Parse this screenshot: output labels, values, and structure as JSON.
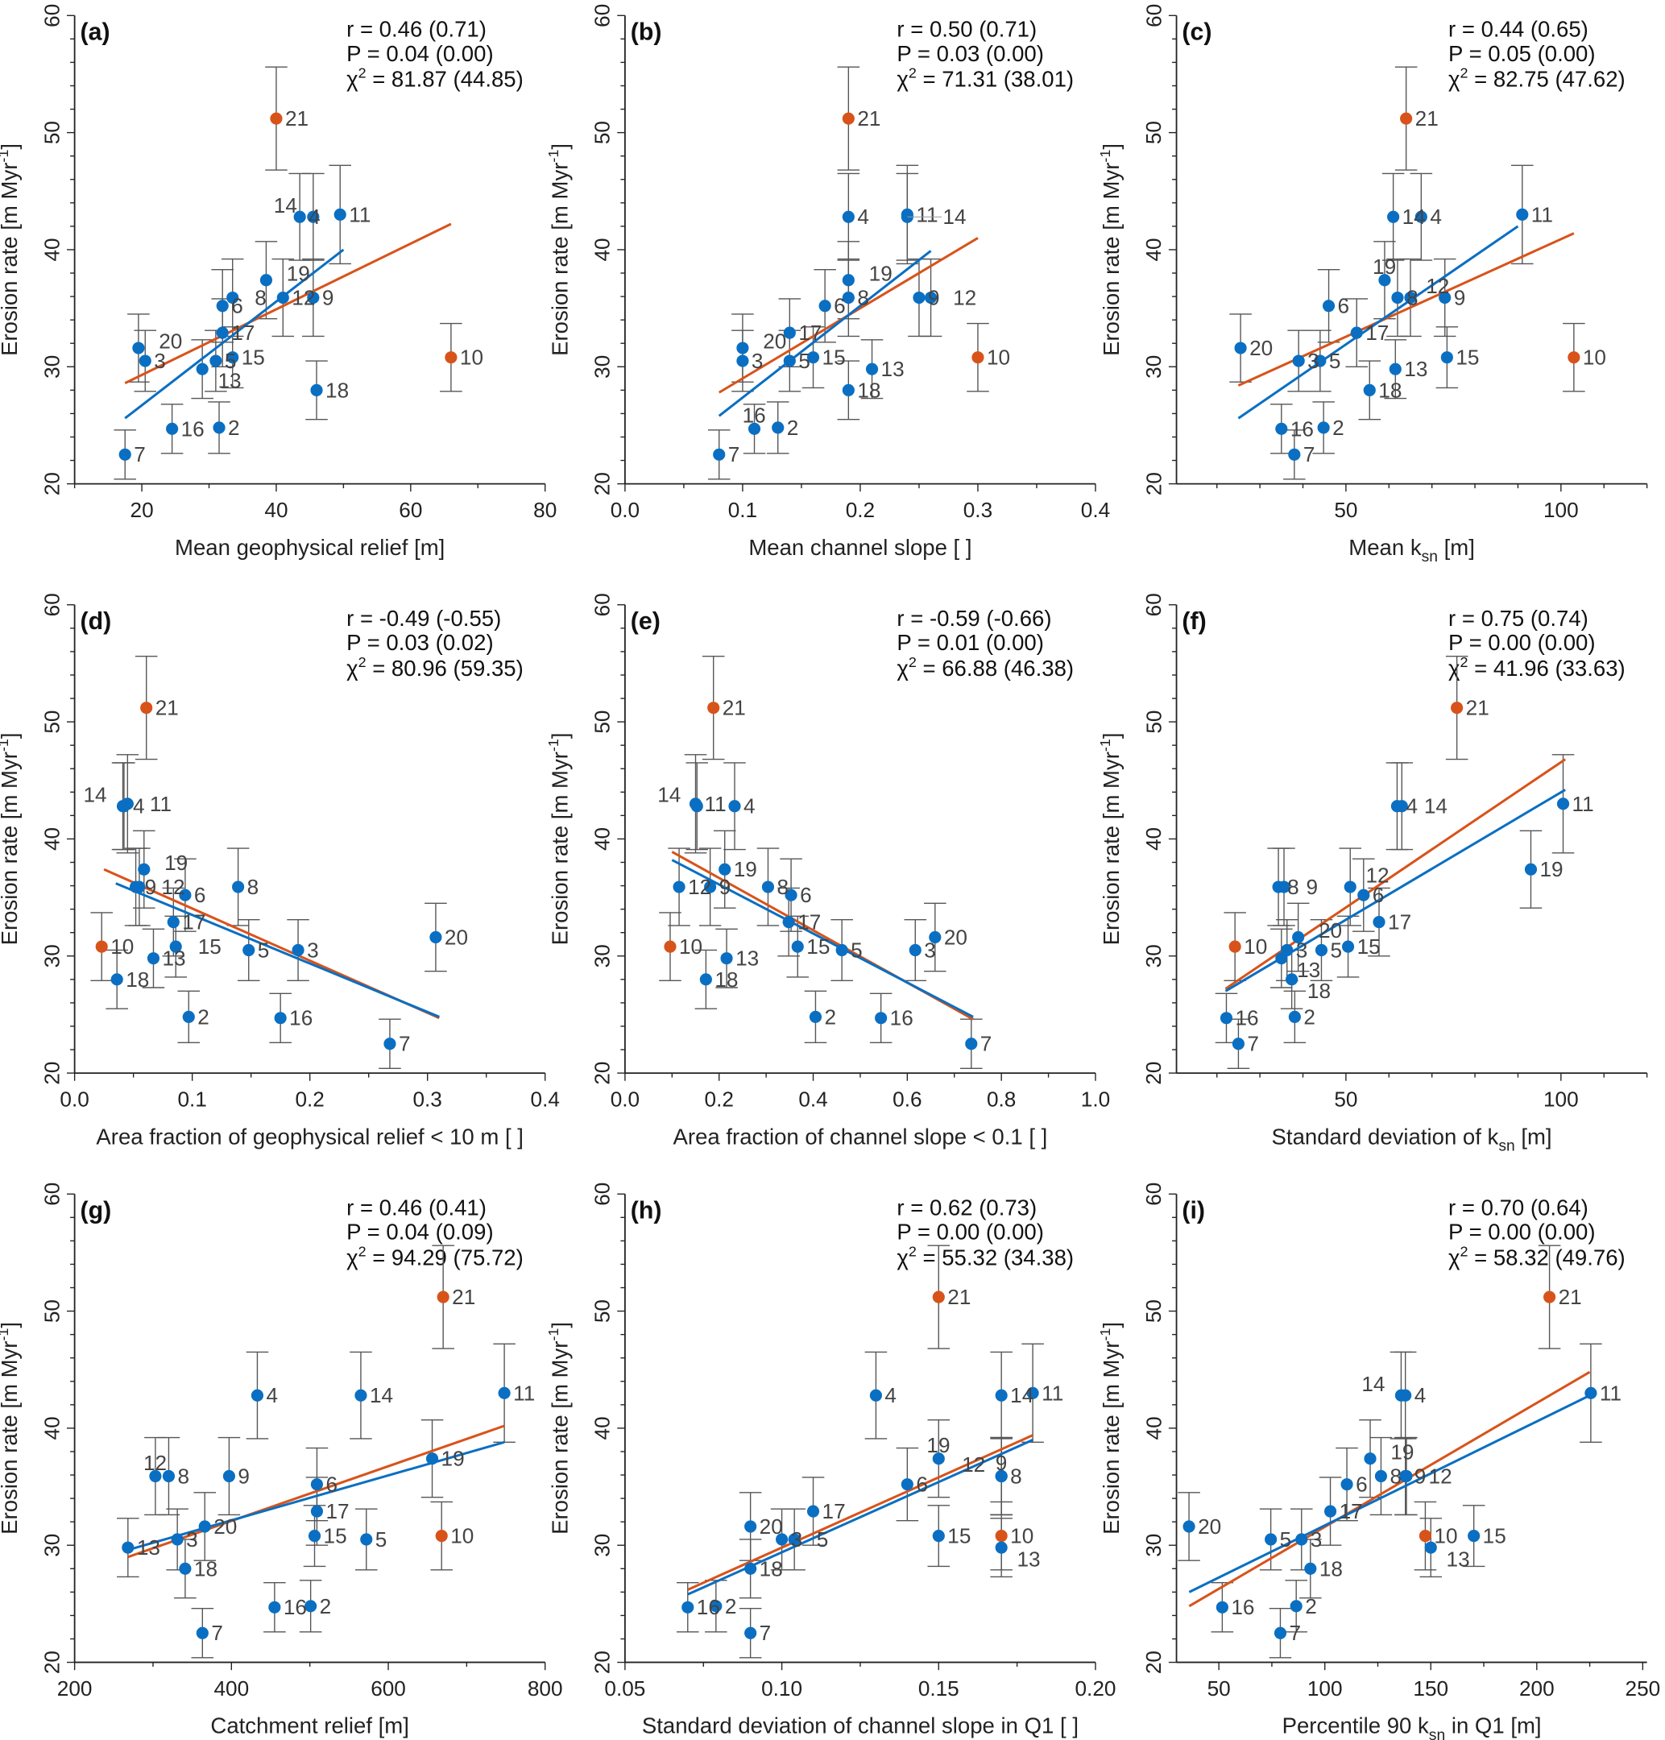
{
  "colors": {
    "blue": "#0a6fc2",
    "orange": "#d8531a",
    "errorbar": "#555555",
    "axis": "#222222"
  },
  "ylabel": {
    "pre": "Erosion rate [m Myr",
    "sup": "-1",
    "post": "]"
  },
  "yticks": [
    20,
    30,
    40,
    50,
    60
  ],
  "ylim": [
    20,
    60
  ],
  "samples": {
    "ids": [
      "2",
      "3",
      "4",
      "5",
      "6",
      "7",
      "8",
      "9",
      "10",
      "11",
      "12",
      "13",
      "14",
      "15",
      "16",
      "17",
      "18",
      "19",
      "20",
      "21"
    ],
    "erosion_rate": [
      24.8,
      30.5,
      42.8,
      30.5,
      35.2,
      22.5,
      35.9,
      35.9,
      30.8,
      43.0,
      35.9,
      29.8,
      42.8,
      30.8,
      24.7,
      32.9,
      28.0,
      37.4,
      31.6,
      51.2
    ],
    "error": [
      2.2,
      2.6,
      3.7,
      2.6,
      3.1,
      2.1,
      3.3,
      3.3,
      2.9,
      4.2,
      3.3,
      2.5,
      3.7,
      2.6,
      2.1,
      2.9,
      2.5,
      3.3,
      2.9,
      4.4
    ],
    "highlighted_ids": [
      "10",
      "21"
    ]
  },
  "chart_data": [
    {
      "type": "scatter",
      "panel": "(a)",
      "xlabel": {
        "pre": "Mean geophysical relief [m]",
        "sub": "",
        "post": ""
      },
      "xlim": [
        10,
        80
      ],
      "xticks": [
        20,
        40,
        60,
        80
      ],
      "xtick_labels": [
        "20",
        "40",
        "60",
        "80"
      ],
      "x": [
        31.5,
        20.5,
        43.5,
        31,
        32,
        17.5,
        33.5,
        45.5,
        66,
        49.5,
        41,
        29,
        45.5,
        33.5,
        24.5,
        32,
        46,
        38.5,
        19.5,
        40
      ],
      "fit_all": [
        [
          17.5,
          28.6
        ],
        [
          66,
          42.2
        ]
      ],
      "fit_blue": [
        [
          17.5,
          25.6
        ],
        [
          50,
          40.0
        ]
      ],
      "stats": {
        "r": "r = 0.46 (0.71)",
        "p": "P = 0.04 (0.00)",
        "chi_symbol": "χ",
        "chi_sup": "2",
        "chi": " = 81.87 (44.85)"
      }
    },
    {
      "type": "scatter",
      "panel": "(b)",
      "xlabel": {
        "pre": "Mean channel slope [ ]",
        "sub": "",
        "post": ""
      },
      "xlim": [
        0,
        0.4
      ],
      "xticks": [
        0,
        0.1,
        0.2,
        0.3,
        0.4
      ],
      "xtick_labels": [
        "0.0",
        "0.1",
        "0.2",
        "0.3",
        "0.4"
      ],
      "x": [
        0.13,
        0.1,
        0.19,
        0.14,
        0.17,
        0.08,
        0.19,
        0.25,
        0.3,
        0.24,
        0.26,
        0.21,
        0.24,
        0.16,
        0.11,
        0.14,
        0.19,
        0.19,
        0.1,
        0.19
      ],
      "fit_all": [
        [
          0.08,
          27.8
        ],
        [
          0.3,
          41.0
        ]
      ],
      "fit_blue": [
        [
          0.08,
          25.8
        ],
        [
          0.26,
          39.9
        ]
      ],
      "stats": {
        "r": "r = 0.50 (0.71)",
        "p": "P = 0.03 (0.00)",
        "chi_symbol": "χ",
        "chi_sup": "2",
        "chi": " = 71.31 (38.01)"
      }
    },
    {
      "type": "scatter",
      "panel": "(c)",
      "xlabel": {
        "pre": "Mean k",
        "sub": "sn",
        "post": " [m]"
      },
      "xlim": [
        10.6,
        120
      ],
      "xticks": [
        50,
        100
      ],
      "xtick_labels": [
        "50",
        "100"
      ],
      "x": [
        44.8,
        39,
        67.5,
        44,
        46,
        38,
        62,
        73,
        103,
        91,
        65,
        61.5,
        61,
        73.5,
        35,
        52.5,
        55.5,
        59,
        25.5,
        64
      ],
      "fit_all": [
        [
          25,
          28.4
        ],
        [
          103,
          41.4
        ]
      ],
      "fit_blue": [
        [
          25,
          25.6
        ],
        [
          90,
          42.0
        ]
      ],
      "stats": {
        "r": "r = 0.44 (0.65)",
        "p": "P = 0.05 (0.00)",
        "chi_symbol": "χ",
        "chi_sup": "2",
        "chi": " = 82.75 (47.62)"
      }
    },
    {
      "type": "scatter",
      "panel": "(d)",
      "xlabel": {
        "pre": "Area fraction of geophysical relief < 10 m [ ]",
        "sub": "",
        "post": ""
      },
      "xlim": [
        0,
        0.4
      ],
      "xticks": [
        0,
        0.1,
        0.2,
        0.3,
        0.4
      ],
      "xtick_labels": [
        "0.0",
        "0.1",
        "0.2",
        "0.3",
        "0.4"
      ],
      "x": [
        0.097,
        0.19,
        0.042,
        0.148,
        0.094,
        0.268,
        0.139,
        0.052,
        0.023,
        0.045,
        0.055,
        0.067,
        0.041,
        0.086,
        0.175,
        0.084,
        0.036,
        0.059,
        0.307,
        0.061
      ],
      "fit_all": [
        [
          0.025,
          37.4
        ],
        [
          0.31,
          24.7
        ]
      ],
      "fit_blue": [
        [
          0.035,
          36.2
        ],
        [
          0.31,
          24.8
        ]
      ],
      "stats": {
        "r": "r = -0.49 (-0.55)",
        "p": "P = 0.03 (0.02)",
        "chi_symbol": "χ",
        "chi_sup": "2",
        "chi": " = 80.96 (59.35)"
      }
    },
    {
      "type": "scatter",
      "panel": "(e)",
      "xlabel": {
        "pre": "Area fraction of channel slope < 0.1 [ ]",
        "sub": "",
        "post": ""
      },
      "xlim": [
        0,
        1
      ],
      "xticks": [
        0,
        0.2,
        0.4,
        0.6,
        0.8,
        1.0
      ],
      "xtick_labels": [
        "0.0",
        "0.2",
        "0.4",
        "0.6",
        "0.8",
        "1.0"
      ],
      "x": [
        0.405,
        0.617,
        0.233,
        0.461,
        0.353,
        0.736,
        0.304,
        0.181,
        0.096,
        0.15,
        0.115,
        0.216,
        0.153,
        0.367,
        0.544,
        0.348,
        0.172,
        0.212,
        0.659,
        0.188
      ],
      "fit_all": [
        [
          0.1,
          38.9
        ],
        [
          0.74,
          24.6
        ]
      ],
      "fit_blue": [
        [
          0.1,
          38.2
        ],
        [
          0.74,
          24.8
        ]
      ],
      "stats": {
        "r": "r = -0.59 (-0.66)",
        "p": "P = 0.01 (0.00)",
        "chi_symbol": "χ",
        "chi_sup": "2",
        "chi": " = 66.88 (46.38)"
      }
    },
    {
      "type": "scatter",
      "panel": "(f)",
      "xlabel": {
        "pre": "Standard deviation of k",
        "sub": "sn",
        "post": " [m]"
      },
      "xlim": [
        10.6,
        120
      ],
      "xticks": [
        50,
        100
      ],
      "xtick_labels": [
        "50",
        "100"
      ],
      "x": [
        38.1,
        36.3,
        61.9,
        44.3,
        54.1,
        25,
        34.3,
        35.6,
        24.2,
        100.5,
        51,
        35,
        63,
        50.5,
        22.2,
        57.7,
        37.4,
        93,
        38.9,
        75.8
      ],
      "fit_all": [
        [
          22,
          27.2
        ],
        [
          101,
          46.8
        ]
      ],
      "fit_blue": [
        [
          22,
          27.0
        ],
        [
          101,
          44.2
        ]
      ],
      "stats": {
        "r": "r = 0.75 (0.74)",
        "p": "P = 0.00 (0.00)",
        "chi_symbol": "χ",
        "chi_sup": "2",
        "chi": " = 41.96 (33.63)"
      }
    },
    {
      "type": "scatter",
      "panel": "(g)",
      "xlabel": {
        "pre": "Catchment relief [m]",
        "sub": "",
        "post": ""
      },
      "xlim": [
        200,
        800
      ],
      "xticks": [
        200,
        400,
        600,
        800
      ],
      "xtick_labels": [
        "200",
        "400",
        "600",
        "800"
      ],
      "x": [
        501,
        331,
        433,
        572,
        509,
        363,
        320,
        397,
        668,
        748,
        303,
        268,
        565,
        506,
        455,
        509,
        341,
        656,
        366,
        670
      ],
      "fit_all": [
        [
          268,
          29.0
        ],
        [
          748,
          40.2
        ]
      ],
      "fit_blue": [
        [
          268,
          29.6
        ],
        [
          748,
          38.8
        ]
      ],
      "stats": {
        "r": "r = 0.46 (0.41)",
        "p": "P = 0.04 (0.09)",
        "chi_symbol": "χ",
        "chi_sup": "2",
        "chi": " = 94.29 (75.72)"
      }
    },
    {
      "type": "scatter",
      "panel": "(h)",
      "xlabel": {
        "pre": "Standard deviation of channel slope in Q1 [ ]",
        "sub": "",
        "post": ""
      },
      "xlim": [
        0.05,
        0.2
      ],
      "xticks": [
        0.05,
        0.1,
        0.15,
        0.2
      ],
      "xtick_labels": [
        "0.05",
        "0.10",
        "0.15",
        "0.20"
      ],
      "x": [
        0.079,
        0.1,
        0.13,
        0.104,
        0.14,
        0.09,
        0.17,
        0.17,
        0.17,
        0.18,
        0.17,
        0.17,
        0.17,
        0.15,
        0.07,
        0.11,
        0.09,
        0.15,
        0.09,
        0.15
      ],
      "fit_all": [
        [
          0.07,
          26.2
        ],
        [
          0.18,
          39.4
        ]
      ],
      "fit_blue": [
        [
          0.07,
          25.8
        ],
        [
          0.18,
          39.0
        ]
      ],
      "stats": {
        "r": "r = 0.62 (0.73)",
        "p": "P = 0.00 (0.00)",
        "chi_symbol": "χ",
        "chi_sup": "2",
        "chi": " = 55.32 (34.38)"
      }
    },
    {
      "type": "scatter",
      "panel": "(i)",
      "xlabel": {
        "pre": "Percentile 90 k",
        "sub": "sn",
        "post": " in Q1 [m]"
      },
      "xlim": [
        30,
        252
      ],
      "xticks": [
        50,
        100,
        150,
        200,
        250
      ],
      "xtick_labels": [
        "50",
        "100",
        "150",
        "200",
        "250"
      ],
      "x": [
        86.5,
        89,
        138,
        74.5,
        110.4,
        79,
        126.5,
        138,
        147.4,
        225.5,
        138.5,
        150,
        136,
        170.3,
        51.6,
        102.6,
        93.2,
        121.4,
        35.9,
        206
      ],
      "fit_all": [
        [
          36,
          24.8
        ],
        [
          225,
          44.8
        ]
      ],
      "fit_blue": [
        [
          36,
          26.0
        ],
        [
          225,
          42.8
        ]
      ],
      "stats": {
        "r": "r = 0.70 (0.64)",
        "p": "P = 0.00 (0.00)",
        "chi_symbol": "χ",
        "chi_sup": "2",
        "chi": " = 58.32 (49.76)"
      }
    }
  ]
}
